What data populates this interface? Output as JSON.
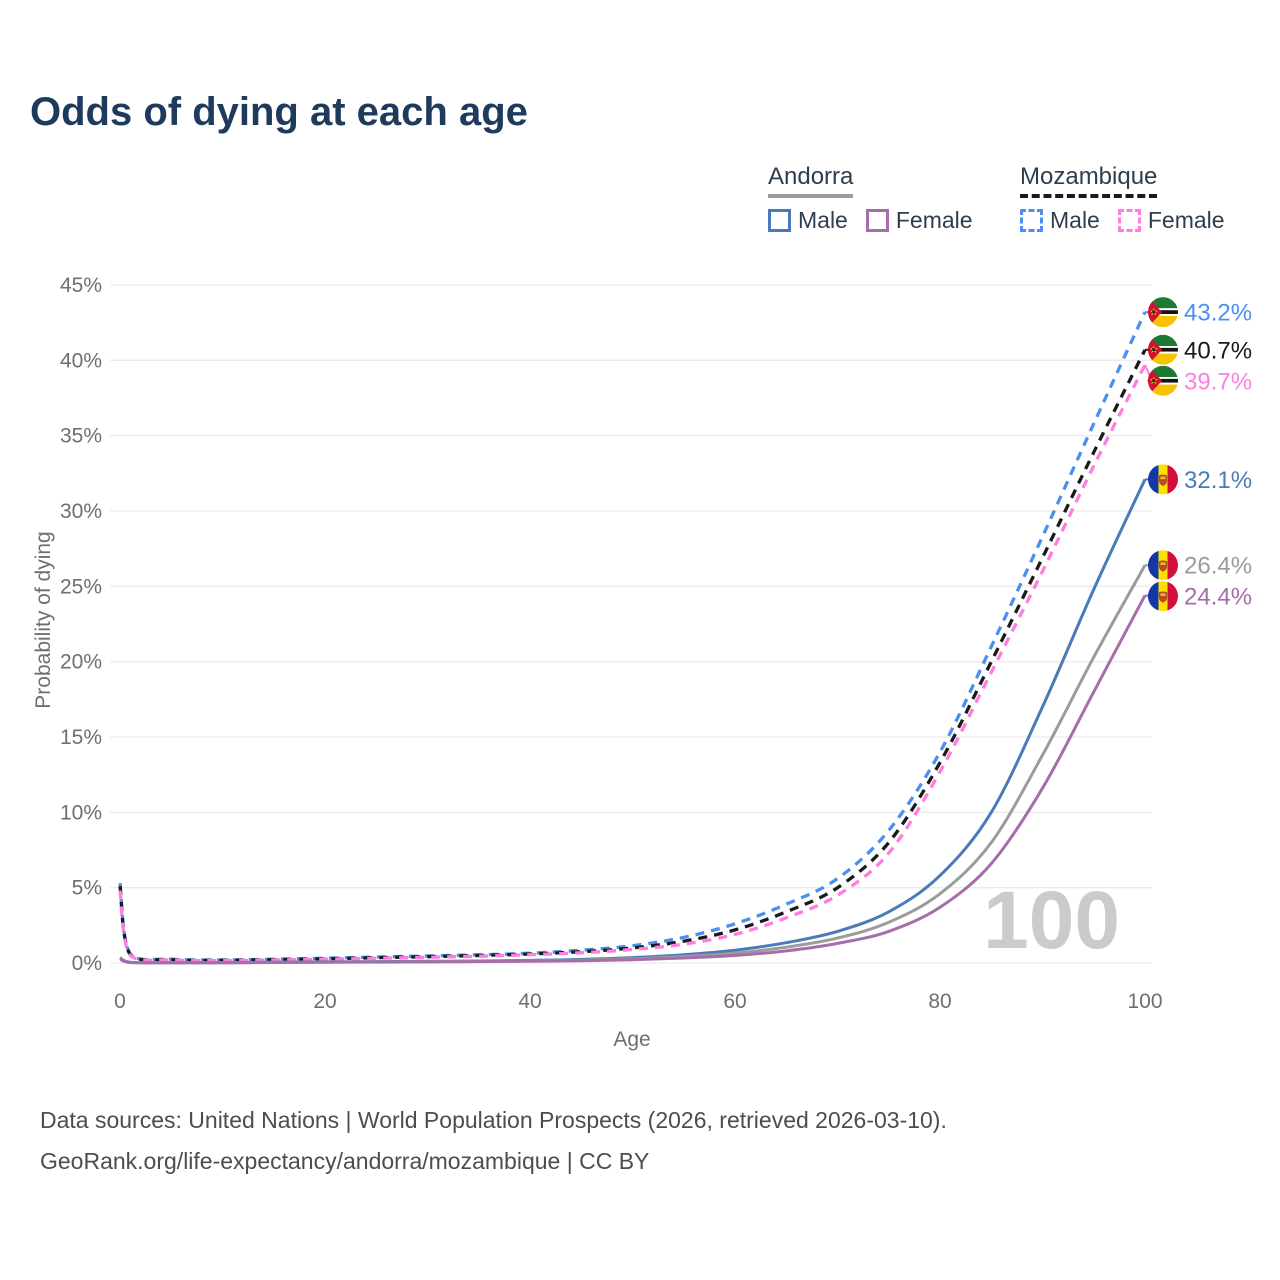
{
  "title": "Odds of dying at each age",
  "legend": {
    "groups": [
      {
        "label": "Andorra",
        "series_ref": 4,
        "items": [
          {
            "label": "Male",
            "series_ref": 3
          },
          {
            "label": "Female",
            "series_ref": 5
          }
        ]
      },
      {
        "label": "Mozambique",
        "series_ref": 1,
        "items": [
          {
            "label": "Male",
            "series_ref": 0
          },
          {
            "label": "Female",
            "series_ref": 2
          }
        ]
      }
    ]
  },
  "footer": {
    "line1": "Data sources: United Nations | World Population Prospects (2026, retrieved 2026-03-10).",
    "line2": "GeoRank.org/life-expectancy/andorra/mozambique | CC BY"
  },
  "chart_data": {
    "type": "line",
    "title": "Odds of dying at each age",
    "xlabel": "Age",
    "ylabel": "Probability of dying",
    "xlim": [
      0,
      100
    ],
    "ylim": [
      0,
      45
    ],
    "x_ticks": [
      0,
      20,
      40,
      60,
      80,
      100
    ],
    "x_tick_labels": [
      "0",
      "20",
      "40",
      "60",
      "80",
      "100"
    ],
    "y_ticks": [
      0,
      5,
      10,
      15,
      20,
      25,
      30,
      35,
      40,
      45
    ],
    "y_tick_labels": [
      "0%",
      "5%",
      "10%",
      "15%",
      "20%",
      "25%",
      "30%",
      "35%",
      "40%",
      "45%"
    ],
    "grid": "horizontal",
    "legend_position": "top-right",
    "watermark": "100",
    "unit": "percent",
    "ages": [
      0,
      1,
      5,
      10,
      15,
      20,
      25,
      30,
      35,
      40,
      45,
      50,
      55,
      60,
      65,
      70,
      75,
      80,
      85,
      90,
      95,
      100
    ],
    "series": [
      {
        "id": "mozambique-male",
        "name": "Mozambique Male",
        "flag": "mozambique",
        "color": "#4b8ff0",
        "dashed": true,
        "end_label": "43.2%",
        "values": [
          5.3,
          0.6,
          0.25,
          0.2,
          0.25,
          0.32,
          0.4,
          0.47,
          0.55,
          0.65,
          0.85,
          1.15,
          1.7,
          2.6,
          3.9,
          5.6,
          8.8,
          14.0,
          21.0,
          28.3,
          35.8,
          43.2
        ]
      },
      {
        "id": "mozambique-both",
        "name": "Mozambique Both sexes",
        "flag": "mozambique",
        "color": "#1a1a1a",
        "dashed": true,
        "end_label": "40.7%",
        "values": [
          5.1,
          0.55,
          0.22,
          0.18,
          0.22,
          0.28,
          0.35,
          0.42,
          0.5,
          0.6,
          0.75,
          1.0,
          1.45,
          2.2,
          3.4,
          5.0,
          8.0,
          13.3,
          20.0,
          26.9,
          33.9,
          40.7
        ]
      },
      {
        "id": "mozambique-female",
        "name": "Mozambique Female",
        "flag": "mozambique",
        "color": "#ff7de0",
        "dashed": true,
        "end_label": "39.7%",
        "values": [
          4.8,
          0.5,
          0.2,
          0.16,
          0.2,
          0.25,
          0.31,
          0.38,
          0.45,
          0.55,
          0.68,
          0.9,
          1.25,
          1.9,
          3.0,
          4.5,
          7.3,
          12.7,
          19.3,
          26.0,
          33.0,
          39.7
        ]
      },
      {
        "id": "andorra-male",
        "name": "Andorra Male",
        "flag": "andorra",
        "color": "#4a7ab9",
        "dashed": false,
        "end_label": "32.1%",
        "values": [
          0.35,
          0.05,
          0.02,
          0.02,
          0.05,
          0.08,
          0.09,
          0.11,
          0.13,
          0.17,
          0.24,
          0.36,
          0.55,
          0.85,
          1.35,
          2.1,
          3.4,
          5.8,
          10.0,
          17.0,
          24.8,
          32.1
        ]
      },
      {
        "id": "andorra-both",
        "name": "Andorra Both sexes",
        "flag": "andorra",
        "color": "#9b9b9b",
        "dashed": false,
        "end_label": "26.4%",
        "values": [
          0.3,
          0.04,
          0.018,
          0.016,
          0.04,
          0.06,
          0.07,
          0.09,
          0.11,
          0.14,
          0.19,
          0.28,
          0.43,
          0.66,
          1.05,
          1.65,
          2.7,
          4.6,
          8.0,
          13.8,
          20.3,
          26.4
        ]
      },
      {
        "id": "andorra-female",
        "name": "Andorra Female",
        "flag": "andorra",
        "color": "#a66dab",
        "dashed": false,
        "end_label": "24.4%",
        "values": [
          0.27,
          0.035,
          0.015,
          0.014,
          0.03,
          0.05,
          0.06,
          0.07,
          0.09,
          0.11,
          0.15,
          0.22,
          0.33,
          0.5,
          0.8,
          1.3,
          2.1,
          3.7,
          6.6,
          11.6,
          18.0,
          24.4
        ]
      }
    ]
  }
}
